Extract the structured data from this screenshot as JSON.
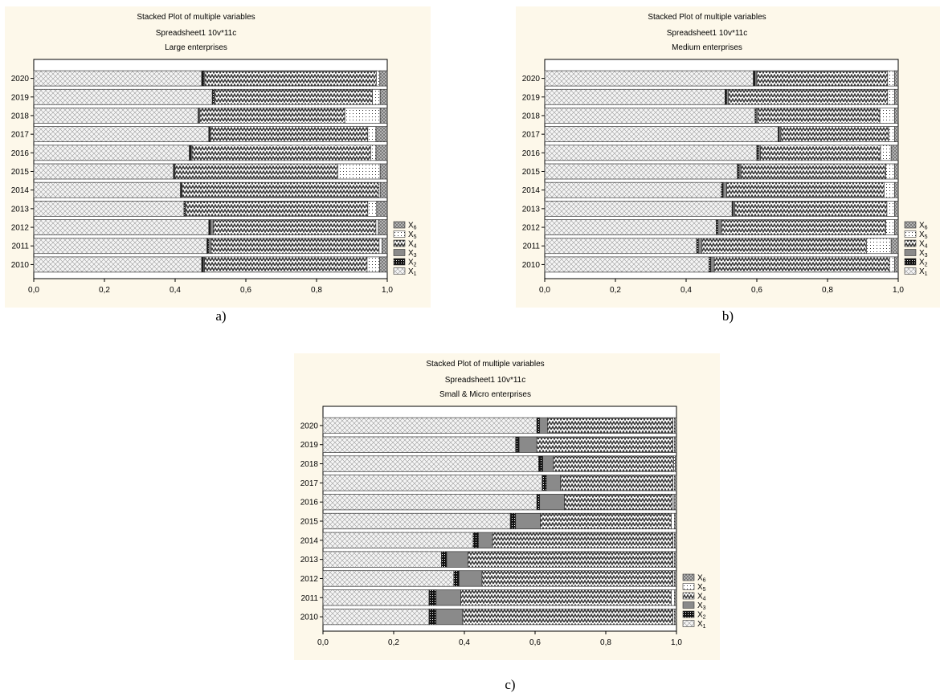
{
  "chart_data": [
    {
      "type": "bar",
      "orientation": "horizontal",
      "stacked": true,
      "normalized": true,
      "caption": "a)",
      "title": "Stacked Plot of multiple variables",
      "subtitle": "Spreadsheet1 10v*11c",
      "subtitle2": "Large enterprises",
      "categories": [
        "2010",
        "2011",
        "2012",
        "2013",
        "2014",
        "2015",
        "2016",
        "2017",
        "2018",
        "2019",
        "2020"
      ],
      "xlim": [
        0,
        1
      ],
      "xticks": [
        "0,0",
        "0,2",
        "0,4",
        "0,6",
        "0,8",
        "1,0"
      ],
      "series": [
        {
          "name": "X1",
          "values": [
            0.475,
            0.49,
            0.495,
            0.425,
            0.415,
            0.395,
            0.44,
            0.495,
            0.465,
            0.505,
            0.475
          ]
        },
        {
          "name": "X2",
          "values": [
            0.005,
            0.005,
            0.005,
            0.003,
            0.003,
            0.003,
            0.005,
            0.003,
            0.002,
            0.005,
            0.006
          ]
        },
        {
          "name": "X3",
          "values": [
            0.003,
            0.007,
            0.008,
            0.002,
            0.002,
            0.002,
            0.003,
            0.002,
            0.003,
            0.003,
            0.003
          ]
        },
        {
          "name": "X4",
          "values": [
            0.46,
            0.475,
            0.46,
            0.515,
            0.555,
            0.46,
            0.505,
            0.445,
            0.41,
            0.445,
            0.485
          ]
        },
        {
          "name": "X5",
          "values": [
            0.035,
            0.008,
            0.007,
            0.025,
            0.005,
            0.12,
            0.015,
            0.023,
            0.1,
            0.022,
            0.01
          ]
        },
        {
          "name": "X6",
          "values": [
            0.022,
            0.015,
            0.025,
            0.03,
            0.02,
            0.02,
            0.032,
            0.032,
            0.02,
            0.02,
            0.021
          ]
        }
      ],
      "legend_position": "right"
    },
    {
      "type": "bar",
      "orientation": "horizontal",
      "stacked": true,
      "normalized": true,
      "caption": "b)",
      "title": "Stacked Plot of multiple variables",
      "subtitle": "Spreadsheet1 10v*11c",
      "subtitle2": "Medium enterprises",
      "categories": [
        "2010",
        "2011",
        "2012",
        "2013",
        "2014",
        "2015",
        "2016",
        "2017",
        "2018",
        "2019",
        "2020"
      ],
      "xlim": [
        0,
        1
      ],
      "xticks": [
        "0,0",
        "0,2",
        "0,4",
        "0,6",
        "0,8",
        "1,0"
      ],
      "series": [
        {
          "name": "X1",
          "values": [
            0.465,
            0.43,
            0.485,
            0.53,
            0.5,
            0.545,
            0.6,
            0.66,
            0.595,
            0.51,
            0.59
          ]
        },
        {
          "name": "X2",
          "values": [
            0.005,
            0.005,
            0.005,
            0.003,
            0.005,
            0.005,
            0.005,
            0.003,
            0.003,
            0.005,
            0.005
          ]
        },
        {
          "name": "X3",
          "values": [
            0.01,
            0.01,
            0.01,
            0.005,
            0.01,
            0.005,
            0.005,
            0.005,
            0.005,
            0.005,
            0.005
          ]
        },
        {
          "name": "X4",
          "values": [
            0.495,
            0.465,
            0.465,
            0.43,
            0.445,
            0.41,
            0.34,
            0.305,
            0.345,
            0.45,
            0.37
          ]
        },
        {
          "name": "X5",
          "values": [
            0.015,
            0.07,
            0.025,
            0.022,
            0.03,
            0.025,
            0.03,
            0.017,
            0.042,
            0.02,
            0.02
          ]
        },
        {
          "name": "X6",
          "values": [
            0.01,
            0.02,
            0.01,
            0.01,
            0.01,
            0.01,
            0.02,
            0.01,
            0.01,
            0.01,
            0.01
          ]
        }
      ],
      "legend_position": "right"
    },
    {
      "type": "bar",
      "orientation": "horizontal",
      "stacked": true,
      "normalized": true,
      "caption": "c)",
      "title": "Stacked Plot of multiple variables",
      "subtitle": "Spreadsheet1 10v*11c",
      "subtitle2": "Small & Micro enterprises",
      "categories": [
        "2010",
        "2011",
        "2012",
        "2013",
        "2014",
        "2015",
        "2016",
        "2017",
        "2018",
        "2019",
        "2020"
      ],
      "xlim": [
        0,
        1
      ],
      "xticks": [
        "0,0",
        "0,2",
        "0,4",
        "0,6",
        "0,8",
        "1,0"
      ],
      "series": [
        {
          "name": "X1",
          "values": [
            0.3,
            0.3,
            0.37,
            0.335,
            0.425,
            0.53,
            0.605,
            0.62,
            0.61,
            0.545,
            0.605
          ]
        },
        {
          "name": "X2",
          "values": [
            0.02,
            0.02,
            0.015,
            0.015,
            0.015,
            0.015,
            0.008,
            0.012,
            0.012,
            0.01,
            0.008
          ]
        },
        {
          "name": "X3",
          "values": [
            0.075,
            0.07,
            0.065,
            0.06,
            0.04,
            0.07,
            0.07,
            0.04,
            0.03,
            0.05,
            0.022
          ]
        },
        {
          "name": "X4",
          "values": [
            0.595,
            0.595,
            0.54,
            0.58,
            0.51,
            0.37,
            0.305,
            0.318,
            0.34,
            0.385,
            0.355
          ]
        },
        {
          "name": "X5",
          "values": [
            0.005,
            0.01,
            0.005,
            0.005,
            0.005,
            0.01,
            0.005,
            0.005,
            0.005,
            0.005,
            0.005
          ]
        },
        {
          "name": "X6",
          "values": [
            0.005,
            0.005,
            0.005,
            0.005,
            0.005,
            0.005,
            0.007,
            0.005,
            0.003,
            0.005,
            0.005
          ]
        }
      ],
      "legend_position": "right"
    }
  ]
}
